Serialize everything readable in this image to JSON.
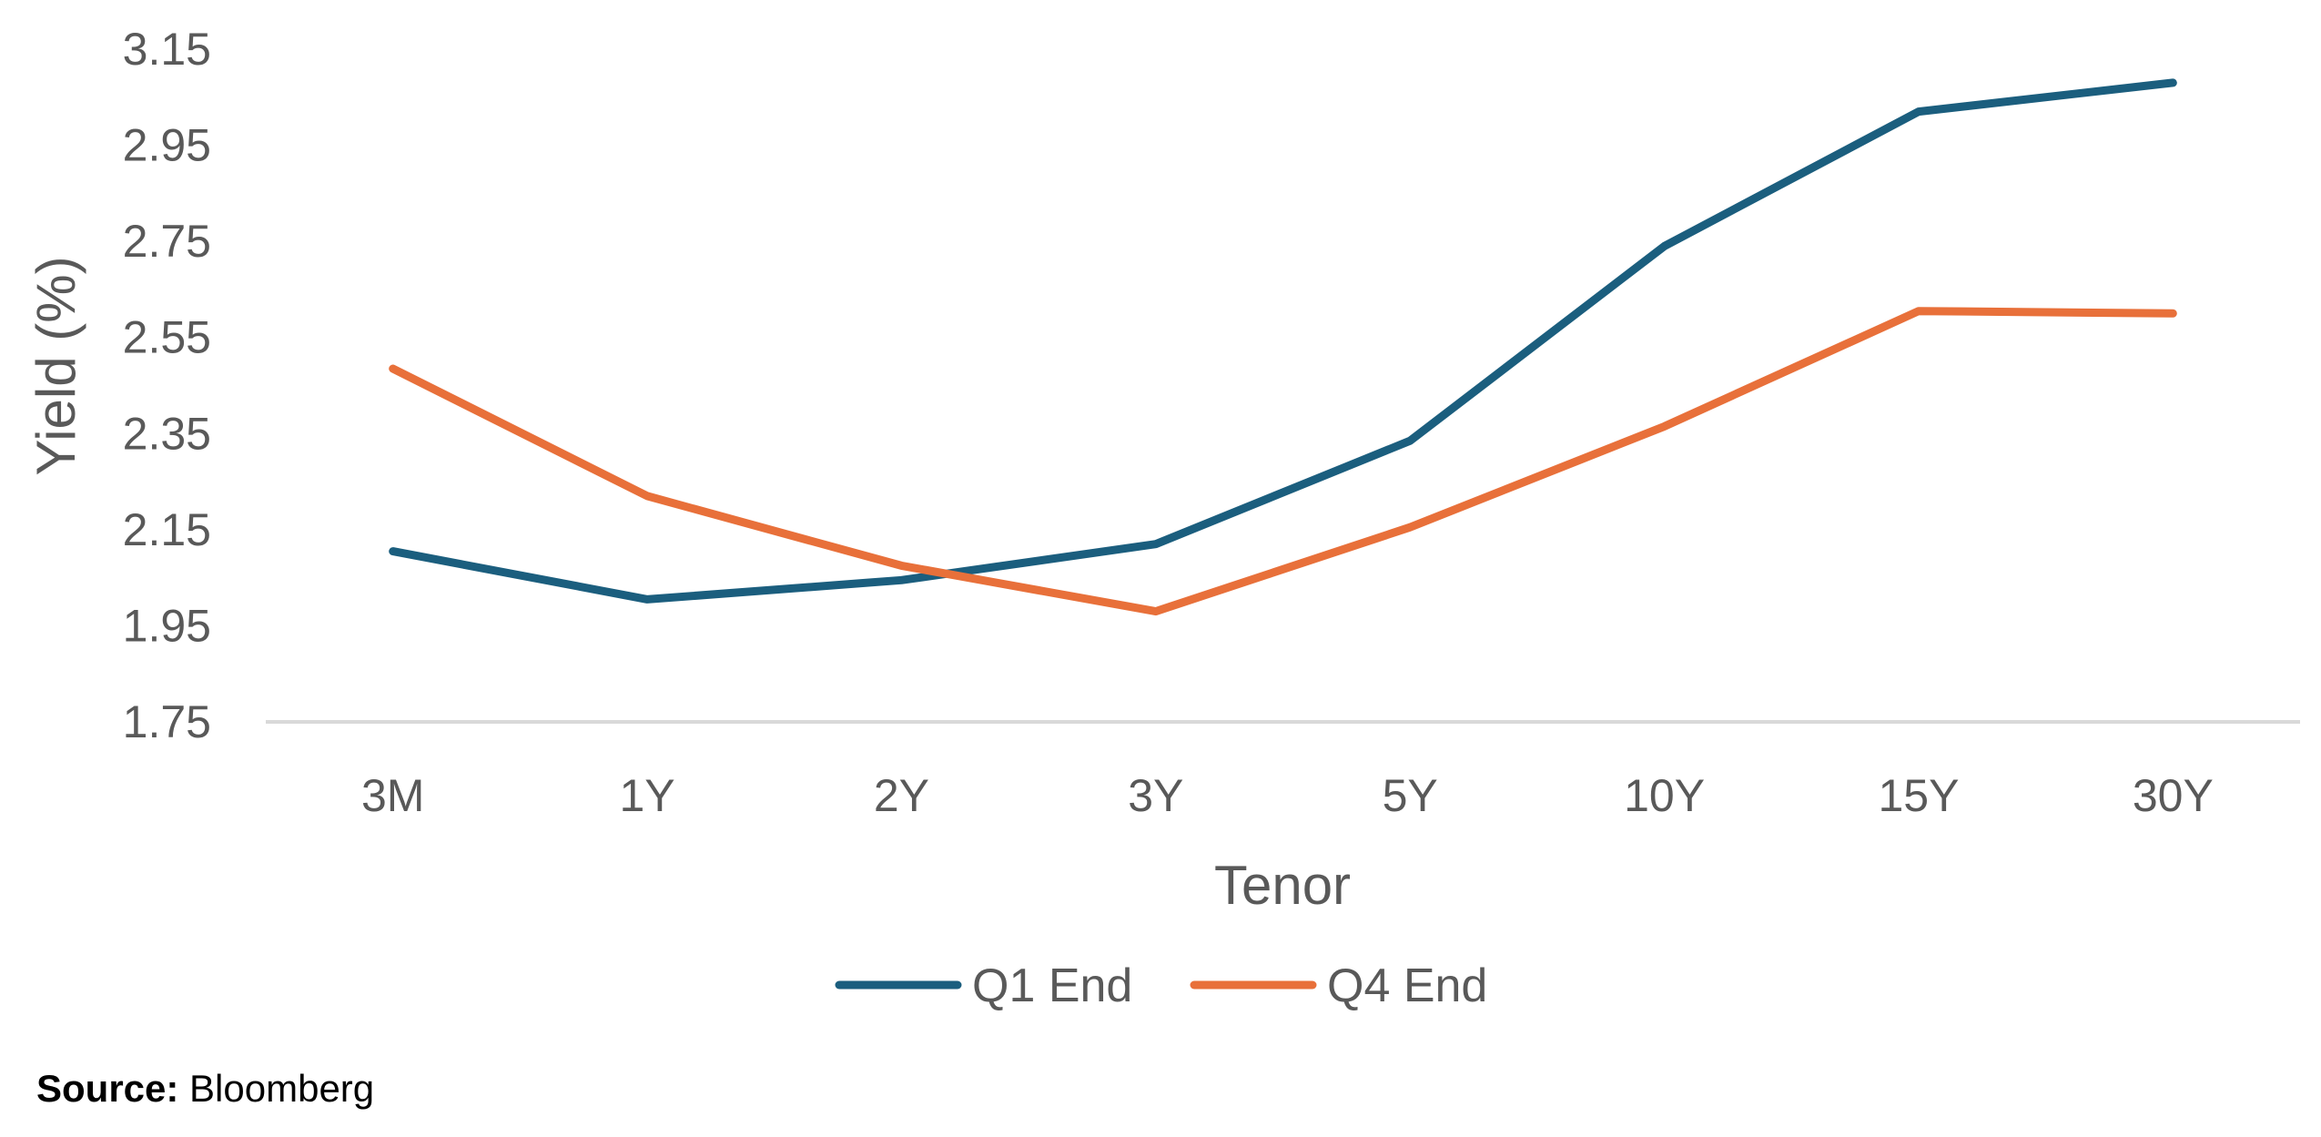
{
  "chart_data": {
    "type": "line",
    "categories": [
      "3M",
      "1Y",
      "2Y",
      "3Y",
      "5Y",
      "10Y",
      "15Y",
      "30Y"
    ],
    "series": [
      {
        "name": "Q1 End",
        "color": "#1B5E7E",
        "values": [
          2.105,
          2.005,
          2.045,
          2.12,
          2.335,
          2.74,
          3.02,
          3.08
        ]
      },
      {
        "name": "Q4 End",
        "color": "#E8703A",
        "values": [
          2.485,
          2.22,
          2.075,
          1.98,
          2.155,
          2.365,
          2.605,
          2.6
        ]
      }
    ],
    "title": "",
    "xlabel": "Tenor",
    "ylabel": "Yield (%)",
    "ylim": [
      1.75,
      3.15
    ],
    "yticks": [
      "1.75",
      "1.95",
      "2.15",
      "2.35",
      "2.55",
      "2.75",
      "2.95",
      "3.15"
    ],
    "grid": false,
    "legend": "bottom-center",
    "axis_color": "#D9D9D9"
  },
  "source": {
    "label": "Source:",
    "text": " Bloomberg"
  }
}
